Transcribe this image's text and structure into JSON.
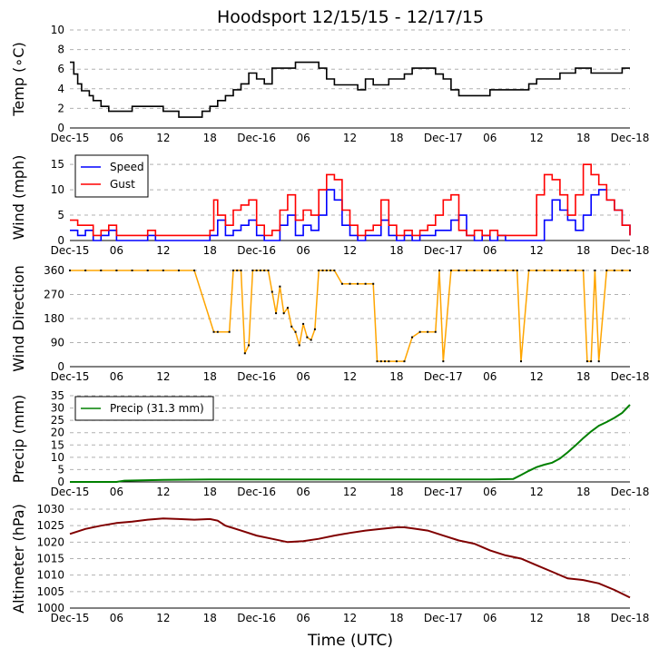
{
  "title": "Hoodsport 12/15/15 - 12/17/15",
  "xlabel": "Time (UTC)",
  "x_ticks": [
    "Dec-15",
    "06",
    "12",
    "18",
    "Dec-16",
    "06",
    "12",
    "18",
    "Dec-17",
    "06",
    "12",
    "18",
    "Dec-18"
  ],
  "chart_data": [
    {
      "type": "line",
      "panel": "temperature",
      "ylabel": "Temp (∘C)",
      "ylim": [
        0,
        10
      ],
      "y_ticks": [
        0,
        2,
        4,
        6,
        8,
        10
      ],
      "x_unit": "hours since Dec-15 00:00 UTC",
      "grid": true,
      "series": [
        {
          "color": "#000000",
          "x": [
            0,
            0.5,
            1,
            1.5,
            2.5,
            3,
            4,
            5,
            6,
            7,
            8,
            9,
            10,
            11,
            12,
            13,
            14,
            15,
            16,
            17,
            18,
            19,
            20,
            21,
            22,
            23,
            24,
            25,
            26,
            27,
            28,
            29,
            30,
            31,
            32,
            33,
            34,
            35,
            36,
            37,
            38,
            39,
            40,
            41,
            42,
            43,
            44,
            45,
            46,
            47,
            48,
            49,
            50,
            51,
            52,
            53,
            54,
            55,
            56,
            57,
            58,
            59,
            60,
            61,
            62,
            63,
            64,
            65,
            66,
            67,
            68,
            69,
            70,
            71,
            72
          ],
          "y": [
            6.7,
            5.5,
            4.5,
            3.8,
            3.3,
            2.8,
            2.2,
            1.7,
            1.7,
            1.7,
            2.2,
            2.2,
            2.2,
            2.2,
            1.7,
            1.7,
            1.1,
            1.1,
            1.1,
            1.7,
            2.2,
            2.8,
            3.3,
            3.9,
            4.5,
            5.6,
            5.0,
            4.5,
            6.1,
            6.1,
            6.1,
            6.7,
            6.7,
            6.7,
            6.1,
            5.0,
            4.4,
            4.4,
            4.4,
            3.9,
            5.0,
            4.4,
            4.4,
            5.0,
            5.0,
            5.5,
            6.1,
            6.1,
            6.1,
            5.5,
            5.0,
            3.9,
            3.3,
            3.3,
            3.3,
            3.3,
            3.9,
            3.9,
            3.9,
            3.9,
            3.9,
            4.5,
            5.0,
            5.0,
            5.0,
            5.6,
            5.6,
            6.1,
            6.1,
            5.6,
            5.6,
            5.6,
            5.6,
            6.1,
            6.1
          ]
        }
      ]
    },
    {
      "type": "line",
      "panel": "wind",
      "ylabel": "Wind (mph)",
      "ylim": [
        0,
        17
      ],
      "y_ticks": [
        0,
        5,
        10,
        15
      ],
      "legend": "top-left",
      "grid": true,
      "series": [
        {
          "name": "Speed",
          "color": "#0000ff",
          "x": [
            0,
            1,
            2,
            3,
            4,
            5,
            6,
            8,
            10,
            11,
            12,
            14,
            16,
            18,
            19,
            20,
            21,
            22,
            23,
            24,
            25,
            26,
            27,
            28,
            29,
            30,
            31,
            32,
            33,
            34,
            35,
            36,
            37,
            38,
            39,
            40,
            41,
            42,
            43,
            44,
            45,
            46,
            47,
            48,
            49,
            50,
            51,
            52,
            53,
            54,
            55,
            56,
            57,
            58,
            59,
            60,
            61,
            62,
            63,
            64,
            65,
            66,
            67,
            68,
            69,
            70,
            71,
            72
          ],
          "y": [
            2,
            1,
            2,
            0,
            1,
            2,
            0,
            0,
            1,
            0,
            0,
            0,
            0,
            1,
            4,
            1,
            2,
            3,
            4,
            1,
            0,
            0,
            3,
            5,
            1,
            3,
            2,
            5,
            10,
            8,
            3,
            1,
            0,
            1,
            1,
            4,
            1,
            0,
            1,
            0,
            1,
            1,
            2,
            2,
            4,
            5,
            1,
            0,
            1,
            0,
            1,
            0,
            0,
            0,
            0,
            0,
            4,
            8,
            6,
            4,
            2,
            5,
            9,
            10,
            8,
            6,
            3,
            1
          ]
        },
        {
          "name": "Gust",
          "color": "#ff0000",
          "x": [
            0,
            1,
            2,
            3,
            4,
            5,
            6,
            8,
            10,
            11,
            12,
            14,
            16,
            18,
            18.5,
            19,
            20,
            21,
            22,
            23,
            24,
            25,
            26,
            27,
            28,
            29,
            30,
            31,
            32,
            33,
            34,
            35,
            36,
            37,
            38,
            39,
            40,
            41,
            42,
            43,
            44,
            45,
            46,
            47,
            48,
            49,
            50,
            51,
            52,
            53,
            54,
            55,
            56,
            57,
            58,
            59,
            60,
            61,
            62,
            63,
            64,
            65,
            66,
            67,
            68,
            69,
            70,
            71,
            72
          ],
          "y": [
            4,
            3,
            3,
            1,
            2,
            3,
            1,
            1,
            2,
            1,
            1,
            1,
            1,
            2,
            8,
            5,
            3,
            6,
            7,
            8,
            3,
            1,
            2,
            6,
            9,
            4,
            6,
            5,
            10,
            13,
            12,
            6,
            3,
            1,
            2,
            3,
            8,
            3,
            1,
            2,
            1,
            2,
            3,
            5,
            8,
            9,
            2,
            1,
            2,
            1,
            2,
            1,
            1,
            1,
            1,
            1,
            9,
            13,
            12,
            9,
            5,
            9,
            15,
            13,
            11,
            8,
            6,
            3,
            1
          ]
        }
      ]
    },
    {
      "type": "scatter",
      "panel": "wind_direction",
      "ylabel": "Wind Direction",
      "ylim": [
        0,
        360
      ],
      "y_ticks": [
        0,
        90,
        180,
        270,
        360
      ],
      "grid": true,
      "series": [
        {
          "color": "#ffa500",
          "x": [
            0,
            2,
            4,
            6,
            8,
            10,
            12,
            14,
            16,
            18.5,
            19,
            20.5,
            21,
            21.5,
            22,
            22.5,
            23,
            23.5,
            24,
            24.5,
            25,
            25.5,
            26,
            26.5,
            27,
            27.5,
            28,
            28.5,
            29,
            29.5,
            30,
            30.5,
            31,
            31.5,
            32,
            32.5,
            33,
            33.5,
            34,
            35,
            36,
            37,
            38,
            39,
            39.5,
            40,
            40.5,
            41,
            42,
            43,
            44,
            45,
            46,
            47,
            47.5,
            48,
            49,
            50,
            51,
            52,
            53,
            54,
            55,
            56,
            57,
            57.5,
            58,
            59,
            60,
            61,
            62,
            63,
            64,
            65,
            66,
            66.5,
            67,
            67.5,
            68,
            69,
            70,
            71,
            72
          ],
          "y": [
            360,
            360,
            360,
            360,
            360,
            360,
            360,
            360,
            360,
            130,
            130,
            130,
            360,
            360,
            360,
            50,
            80,
            360,
            360,
            360,
            360,
            360,
            280,
            200,
            300,
            200,
            220,
            150,
            130,
            80,
            160,
            110,
            100,
            140,
            360,
            360,
            360,
            360,
            360,
            310,
            310,
            310,
            310,
            310,
            20,
            20,
            20,
            20,
            20,
            20,
            110,
            130,
            130,
            130,
            360,
            20,
            360,
            360,
            360,
            360,
            360,
            360,
            360,
            360,
            360,
            360,
            20,
            360,
            360,
            360,
            360,
            360,
            360,
            360,
            360,
            20,
            20,
            360,
            20,
            360,
            360,
            360,
            360
          ]
        }
      ]
    },
    {
      "type": "line",
      "panel": "precip",
      "ylabel": "Precip (mm)",
      "ylim": [
        0,
        35
      ],
      "y_ticks": [
        0,
        5,
        10,
        15,
        20,
        25,
        30,
        35
      ],
      "legend": "top-left",
      "grid": true,
      "series": [
        {
          "name": "Precip (31.3 mm)",
          "color": "#008000",
          "x": [
            0,
            6,
            7,
            12,
            18,
            24,
            30,
            36,
            42,
            48,
            54,
            57,
            58,
            59,
            60,
            61,
            62,
            63,
            64,
            65,
            66,
            67,
            68,
            69,
            70,
            71,
            72
          ],
          "y": [
            0,
            0,
            0.5,
            0.8,
            1.0,
            1.0,
            1.0,
            1.0,
            1.0,
            1.0,
            1.0,
            1.2,
            2.8,
            4.5,
            6.0,
            7.0,
            7.8,
            9.5,
            12.0,
            14.8,
            17.8,
            20.5,
            22.8,
            24.3,
            26.0,
            28.0,
            31.3
          ]
        }
      ]
    },
    {
      "type": "line",
      "panel": "altimeter",
      "ylabel": "Altimeter (hPa)",
      "ylim": [
        1000,
        1030
      ],
      "y_ticks": [
        1000,
        1005,
        1010,
        1015,
        1020,
        1025,
        1030
      ],
      "grid": true,
      "series": [
        {
          "color": "#800000",
          "x": [
            0,
            2,
            4,
            6,
            8,
            10,
            12,
            14,
            16,
            18,
            19,
            20,
            22,
            24,
            26,
            28,
            30,
            32,
            34,
            36,
            38,
            40,
            42,
            43,
            44,
            46,
            48,
            50,
            52,
            54,
            56,
            58,
            60,
            62,
            64,
            66,
            68,
            70,
            72
          ],
          "y": [
            1022.5,
            1024.0,
            1025.0,
            1025.8,
            1026.2,
            1026.8,
            1027.2,
            1027.0,
            1026.8,
            1027.0,
            1026.5,
            1025.0,
            1023.5,
            1022.0,
            1021.0,
            1020.0,
            1020.3,
            1021.0,
            1022.0,
            1022.8,
            1023.5,
            1024.0,
            1024.5,
            1024.5,
            1024.2,
            1023.5,
            1022.0,
            1020.5,
            1019.5,
            1017.5,
            1016.0,
            1015.0,
            1013.0,
            1011.0,
            1009.0,
            1008.5,
            1007.5,
            1005.5,
            1003.2
          ]
        }
      ]
    }
  ]
}
